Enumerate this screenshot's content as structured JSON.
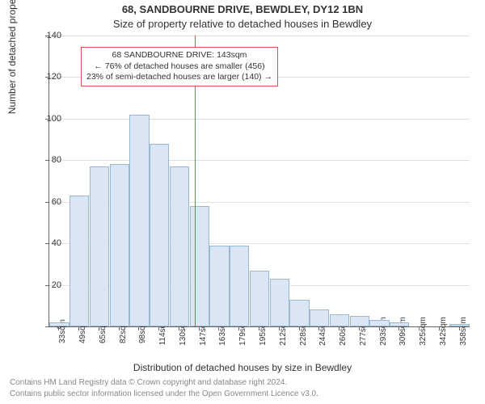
{
  "title_main": "68, SANDBOURNE DRIVE, BEWDLEY, DY12 1BN",
  "title_sub": "Size of property relative to detached houses in Bewdley",
  "ylabel": "Number of detached properties",
  "xlabel": "Distribution of detached houses by size in Bewdley",
  "footer1": "Contains HM Land Registry data © Crown copyright and database right 2024.",
  "footer2": "Contains public sector information licensed under the Open Government Licence v3.0.",
  "annotation": {
    "line1": "68 SANDBOURNE DRIVE: 143sqm",
    "line2": "← 76% of detached houses are smaller (456)",
    "line3": "23% of semi-detached houses are larger (140) →"
  },
  "chart": {
    "type": "histogram",
    "bar_fill": "#dbe6f4",
    "bar_border": "#9bb8d3",
    "grid_color": "#e0e0e0",
    "axis_color": "#666666",
    "ref_color": "#d9534f",
    "background_color": "#ffffff",
    "ylim": [
      0,
      140
    ],
    "ytick_step": 20,
    "ref_x_value": 143,
    "x_categories": [
      "33sqm",
      "49sqm",
      "65sqm",
      "82sqm",
      "98sqm",
      "114sqm",
      "130sqm",
      "147sqm",
      "163sqm",
      "179sqm",
      "195sqm",
      "212sqm",
      "228sqm",
      "244sqm",
      "260sqm",
      "277sqm",
      "293sqm",
      "309sqm",
      "325sqm",
      "342sqm",
      "358sqm"
    ],
    "values": [
      2,
      63,
      77,
      78,
      102,
      88,
      77,
      58,
      39,
      39,
      27,
      23,
      13,
      8,
      6,
      5,
      3,
      2,
      0,
      0,
      1
    ],
    "title_fontsize": 13,
    "label_fontsize": 12,
    "tick_fontsize": 11
  }
}
